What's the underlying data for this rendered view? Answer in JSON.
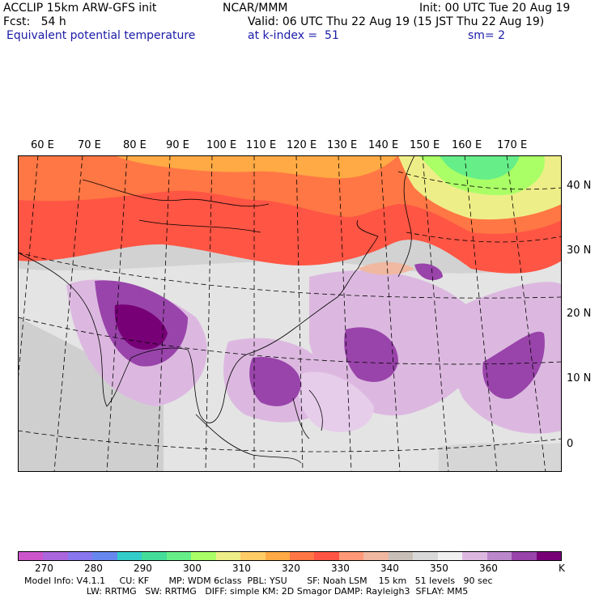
{
  "header": {
    "left1": "ACCLIP 15km ARW-GFS init",
    "left2": "Fcst:   54 h",
    "left3": "Equivalent potential temperature",
    "center1": "NCAR/MMM",
    "center2": "Valid: 06 UTC Thu 22 Aug 19 (15 JST Thu 22 Aug 19)",
    "center3": "at k-index =  51",
    "right1": "Init: 00 UTC Tue 20 Aug 19",
    "right3": "sm= 2"
  },
  "lon_labels": [
    "60 E",
    "70 E",
    "80 E",
    "90 E",
    "100 E",
    "110 E",
    "120 E",
    "130 E",
    "140 E",
    "150 E",
    "160 E",
    "170 E"
  ],
  "lat_labels": [
    "40 N",
    "30 N",
    "20 N",
    "10 N",
    "0"
  ],
  "colorbar": {
    "colors": [
      "#cc55cc",
      "#aa66dd",
      "#8877ee",
      "#6688ee",
      "#33cccc",
      "#44dd99",
      "#66ee88",
      "#aaff66",
      "#eeee88",
      "#ffcc66",
      "#ffaa44",
      "#ff7744",
      "#ff5544",
      "#ff9977",
      "#f0b8a0",
      "#c8c0b8",
      "#d8d8d8",
      "#f0f0f0",
      "#dcb8e0",
      "#bb88cc",
      "#9944aa",
      "#770077"
    ],
    "ticks": [
      "270",
      "280",
      "290",
      "300",
      "310",
      "320",
      "330",
      "340",
      "350",
      "360"
    ],
    "unit": "K"
  },
  "footer": {
    "line1": "Model Info: V4.1.1     CU: KF       MP: WDM 6class  PBL: YSU       SF: Noah LSM    15 km   51 levels   90 sec",
    "line2": "                      LW: RRTMG   SW: RRTMG   DIFF: simple KM: 2D Smagor DAMP: Rayleigh3  SFLAY: MM5"
  }
}
